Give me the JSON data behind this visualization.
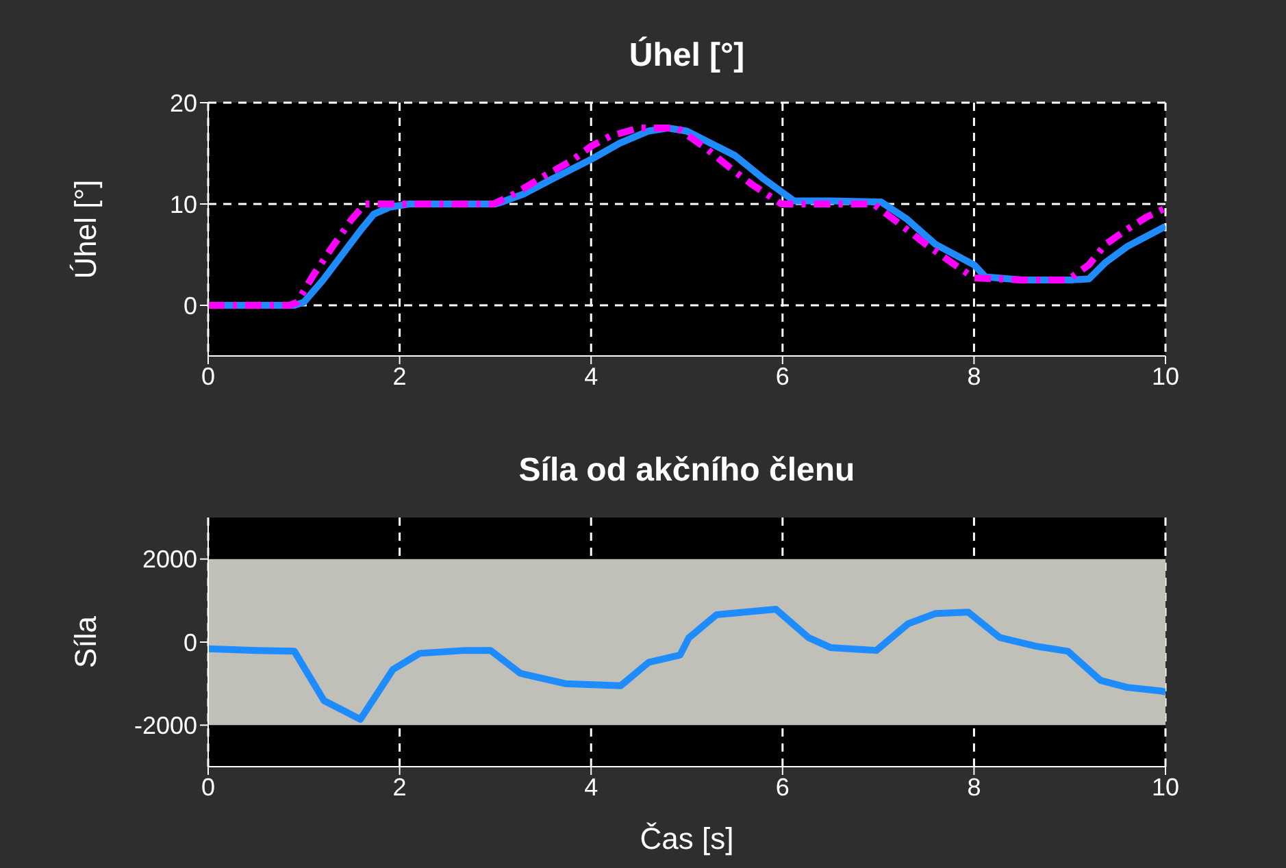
{
  "chart_data": [
    {
      "type": "line",
      "title": "Úhel [°]",
      "ylabel": "Úhel [°]",
      "xlim": [
        0,
        10
      ],
      "xticks": [
        0,
        2,
        4,
        6,
        8,
        10
      ],
      "ylim": [
        -5,
        20
      ],
      "yticks": [
        0,
        10,
        20
      ],
      "grid": true,
      "series": [
        {
          "color": "#1e8cff",
          "line_style": "solid",
          "x": [
            0,
            0.5,
            0.9,
            1.0,
            1.2,
            1.4,
            1.6,
            1.73,
            1.9,
            2.1,
            2.5,
            3.0,
            3.07,
            3.3,
            3.6,
            4.0,
            4.3,
            4.6,
            4.8,
            5.0,
            5.25,
            5.5,
            5.8,
            6.12,
            6.5,
            7.03,
            7.3,
            7.6,
            8.0,
            8.12,
            8.5,
            9.0,
            9.2,
            9.37,
            9.6,
            9.8,
            10
          ],
          "values": [
            0,
            0,
            0,
            0.3,
            2.5,
            5,
            7.5,
            9,
            9.7,
            10,
            10,
            10,
            10.2,
            11,
            12.5,
            14.4,
            16,
            17.2,
            17.5,
            17.2,
            16,
            14.8,
            12.5,
            10.3,
            10.3,
            10.2,
            8.5,
            6,
            4,
            2.8,
            2.5,
            2.5,
            2.6,
            4.2,
            5.8,
            6.8,
            7.8
          ]
        },
        {
          "color": "#ff00ff",
          "line_style": "dashed",
          "x": [
            0,
            0.5,
            0.85,
            0.93,
            1.1,
            1.3,
            1.5,
            1.64,
            2.0,
            2.5,
            2.98,
            3.2,
            3.5,
            3.8,
            4.0,
            4.2,
            4.5,
            4.9,
            5.2,
            5.5,
            5.7,
            5.99,
            6.5,
            6.95,
            7.2,
            7.5,
            7.8,
            8.0,
            8.5,
            8.98,
            9.2,
            9.37,
            9.6,
            9.8,
            10
          ],
          "values": [
            0,
            0,
            0,
            0.3,
            3,
            5.8,
            8.5,
            10,
            10,
            10,
            10,
            11,
            12.7,
            14.3,
            15.7,
            16.7,
            17.5,
            17.5,
            15.5,
            13.2,
            11.8,
            10,
            10,
            10,
            8.2,
            6,
            4,
            2.7,
            2.5,
            2.5,
            4,
            6,
            7.5,
            8.7,
            9.6
          ]
        }
      ]
    },
    {
      "type": "line",
      "title": "Síla od akčního členu",
      "ylabel": "Síla",
      "xlabel": "Čas [s]",
      "xlim": [
        0,
        10
      ],
      "xticks": [
        0,
        2,
        4,
        6,
        8,
        10
      ],
      "ylim": [
        -3000,
        3000
      ],
      "yticks": [
        -2000,
        0,
        2000
      ],
      "grid": "x",
      "bands": [
        {
          "axis": "y",
          "from": -2000,
          "to": 2000,
          "color": "#c0c0b8"
        }
      ],
      "series": [
        {
          "color": "#1e8cff",
          "x": [
            0,
            0.5,
            0.9,
            1.21,
            1.59,
            1.93,
            2.21,
            2.69,
            2.95,
            3.26,
            3.73,
            4.31,
            4.6,
            4.93,
            5.02,
            5.31,
            5.93,
            6.27,
            6.5,
            6.98,
            7.31,
            7.6,
            7.94,
            8.27,
            8.65,
            8.98,
            9.32,
            9.6,
            9.96,
            10
          ],
          "values": [
            -160,
            -200,
            -220,
            -1410,
            -1860,
            -660,
            -270,
            -200,
            -200,
            -750,
            -1000,
            -1050,
            -490,
            -310,
            100,
            660,
            790,
            110,
            -130,
            -200,
            440,
            690,
            720,
            110,
            -100,
            -220,
            -920,
            -1090,
            -1180,
            -1200
          ]
        }
      ]
    }
  ]
}
